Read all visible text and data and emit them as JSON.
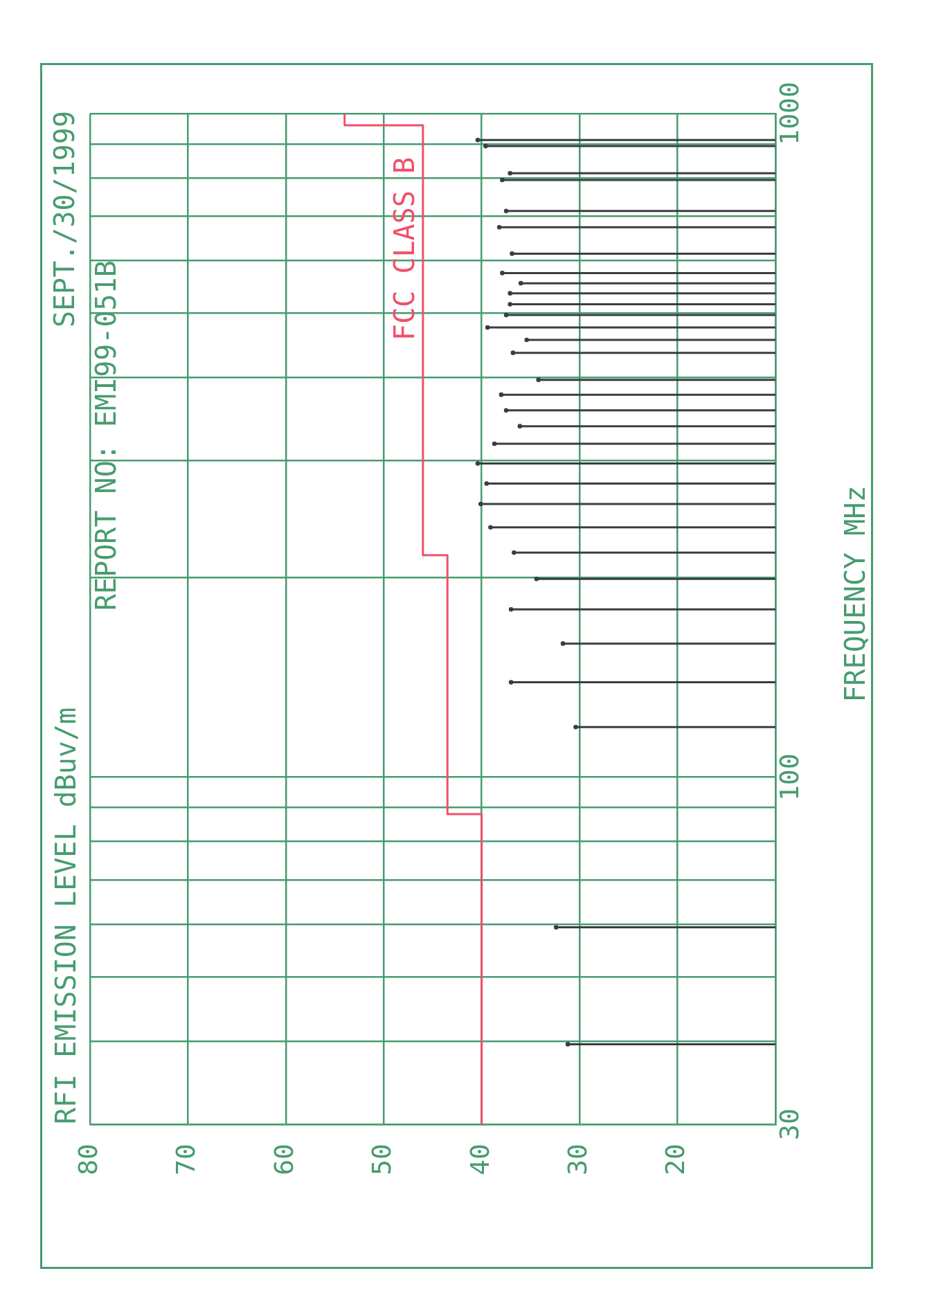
{
  "chart_data": {
    "type": "lollipop",
    "orientation": "horizontal",
    "ylabel": "FREQUENCY MHz",
    "annotations": [
      "RFI EMISSION LEVEL dBuv/m",
      "SEPT./30/1999",
      "REPORT NO: EMI99-051B"
    ],
    "series": [
      {
        "color": "#3c3c44",
        "x": [
          39.6,
          59.4,
          119,
          139,
          159,
          179,
          199,
          218,
          238,
          258,
          277,
          297,
          318,
          338,
          357,
          377,
          397,
          436,
          456,
          476,
          497,
          516,
          536,
          555,
          575,
          615,
          674,
          713,
          794,
          813,
          893,
          912
        ],
        "values": [
          31.2,
          32.4,
          30.4,
          37.0,
          31.7,
          37.0,
          34.4,
          36.7,
          39.1,
          40.1,
          39.5,
          40.4,
          38.7,
          36.1,
          37.5,
          38.0,
          34.2,
          36.8,
          35.4,
          39.4,
          37.5,
          37.1,
          37.1,
          36.0,
          37.9,
          36.9,
          38.2,
          37.5,
          37.9,
          37.1,
          39.6,
          40.4
        ]
      },
      {
        "type": "step",
        "name": "FCC CLASS B",
        "color": "#f0506a",
        "x": [
          30,
          88,
          216,
          960,
          1000
        ],
        "values": [
          40,
          43.5,
          46,
          54,
          54
        ]
      }
    ],
    "xlim": [
      80,
      10
    ],
    "xticks": [
      80,
      70,
      60,
      50,
      40,
      30,
      20,
      {
        "value": 10,
        "label": null
      }
    ],
    "log": "y",
    "ylim": [
      30,
      1000
    ],
    "yticks": [
      30,
      {
        "value": 40,
        "label": null
      },
      {
        "value": 50,
        "label": null
      },
      {
        "value": 60,
        "label": null
      },
      {
        "value": 70,
        "label": null
      },
      {
        "value": 80,
        "label": null
      },
      {
        "value": 90,
        "label": null
      },
      100,
      {
        "value": 200,
        "label": null
      },
      {
        "value": 300,
        "label": null
      },
      {
        "value": 400,
        "label": null
      },
      {
        "value": 500,
        "label": null
      },
      {
        "value": 600,
        "label": null
      },
      {
        "value": 700,
        "label": null
      },
      {
        "value": 800,
        "label": null
      },
      {
        "value": 900,
        "label": null
      },
      1000
    ],
    "grid": true
  }
}
